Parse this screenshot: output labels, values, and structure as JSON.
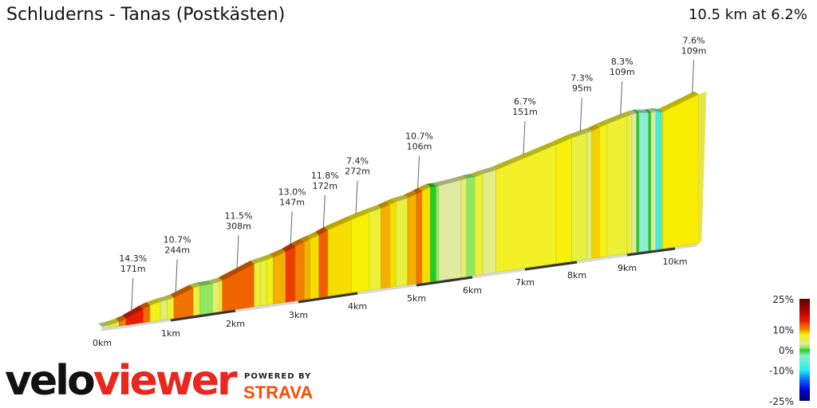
{
  "header": {
    "title": "Schluderns - Tanas (Postkästen)",
    "summary": "10.5 km at 6.2%"
  },
  "branding": {
    "logo_a": "velo",
    "logo_b": "viewer",
    "powered_by": "POWERED BY",
    "strava": "STRAVA"
  },
  "chart_data": {
    "type": "area",
    "title": "Schluderns - Tanas (Postkästen)",
    "distance_km": 10.5,
    "avg_gradient_pct": 6.2,
    "x_ticks": [
      "0km",
      "1km",
      "2km",
      "3km",
      "4km",
      "5km",
      "6km",
      "7km",
      "8km",
      "9km",
      "10km"
    ],
    "segments": [
      {
        "from": 0,
        "to": 0.1,
        "grad": 3
      },
      {
        "from": 0.1,
        "to": 0.25,
        "grad": 6
      },
      {
        "from": 0.25,
        "to": 0.35,
        "grad": 10
      },
      {
        "from": 0.35,
        "to": 0.6,
        "grad": 14.3
      },
      {
        "from": 0.6,
        "to": 0.7,
        "grad": 11
      },
      {
        "from": 0.7,
        "to": 0.85,
        "grad": 7
      },
      {
        "from": 0.85,
        "to": 0.95,
        "grad": 4
      },
      {
        "from": 0.95,
        "to": 1.05,
        "grad": 6
      },
      {
        "from": 1.05,
        "to": 1.35,
        "grad": 10.7
      },
      {
        "from": 1.35,
        "to": 1.45,
        "grad": 5
      },
      {
        "from": 1.45,
        "to": 1.65,
        "grad": 1
      },
      {
        "from": 1.65,
        "to": 1.75,
        "grad": 4
      },
      {
        "from": 1.75,
        "to": 1.8,
        "grad": 6
      },
      {
        "from": 1.8,
        "to": 2.3,
        "grad": 11.5
      },
      {
        "from": 2.3,
        "to": 2.4,
        "grad": 6
      },
      {
        "from": 2.4,
        "to": 2.5,
        "grad": 5
      },
      {
        "from": 2.5,
        "to": 2.6,
        "grad": 7
      },
      {
        "from": 2.6,
        "to": 2.8,
        "grad": 9
      },
      {
        "from": 2.8,
        "to": 2.95,
        "grad": 13
      },
      {
        "from": 2.95,
        "to": 3.1,
        "grad": 10
      },
      {
        "from": 3.1,
        "to": 3.2,
        "grad": 9
      },
      {
        "from": 3.2,
        "to": 3.35,
        "grad": 8
      },
      {
        "from": 3.35,
        "to": 3.5,
        "grad": 11.8
      },
      {
        "from": 3.5,
        "to": 3.9,
        "grad": 8
      },
      {
        "from": 3.9,
        "to": 4.2,
        "grad": 7.4
      },
      {
        "from": 4.2,
        "to": 4.4,
        "grad": 6
      },
      {
        "from": 4.4,
        "to": 4.55,
        "grad": 9
      },
      {
        "from": 4.55,
        "to": 4.65,
        "grad": 8
      },
      {
        "from": 4.65,
        "to": 4.85,
        "grad": 5
      },
      {
        "from": 4.85,
        "to": 5.0,
        "grad": 9
      },
      {
        "from": 5.0,
        "to": 5.1,
        "grad": 10.7
      },
      {
        "from": 5.1,
        "to": 5.25,
        "grad": 8
      },
      {
        "from": 5.25,
        "to": 5.35,
        "grad": 0
      },
      {
        "from": 5.35,
        "to": 5.4,
        "grad": 1
      },
      {
        "from": 5.4,
        "to": 5.8,
        "grad": 3
      },
      {
        "from": 5.8,
        "to": 5.9,
        "grad": 4
      },
      {
        "from": 5.9,
        "to": 6.05,
        "grad": 1
      },
      {
        "from": 6.05,
        "to": 6.2,
        "grad": 6
      },
      {
        "from": 6.2,
        "to": 6.45,
        "grad": 3.5
      },
      {
        "from": 6.45,
        "to": 7.6,
        "grad": 6.7
      },
      {
        "from": 7.6,
        "to": 7.9,
        "grad": 7.3
      },
      {
        "from": 7.9,
        "to": 8.2,
        "grad": 5
      },
      {
        "from": 8.2,
        "to": 8.3,
        "grad": 4
      },
      {
        "from": 8.3,
        "to": 8.45,
        "grad": 8.3
      },
      {
        "from": 8.45,
        "to": 8.6,
        "grad": 7
      },
      {
        "from": 8.6,
        "to": 9.0,
        "grad": 6
      },
      {
        "from": 9.0,
        "to": 9.1,
        "grad": 5
      },
      {
        "from": 9.1,
        "to": 9.2,
        "grad": 3
      },
      {
        "from": 9.2,
        "to": 9.25,
        "grad": 0
      },
      {
        "from": 9.25,
        "to": 9.45,
        "grad": -3
      },
      {
        "from": 9.45,
        "to": 9.5,
        "grad": 0
      },
      {
        "from": 9.5,
        "to": 9.6,
        "grad": 3
      },
      {
        "from": 9.6,
        "to": 9.7,
        "grad": -8
      },
      {
        "from": 9.7,
        "to": 9.75,
        "grad": 1
      },
      {
        "from": 9.75,
        "to": 10.5,
        "grad": 7.6
      }
    ],
    "annotations": [
      {
        "km": 0.45,
        "grad": "14.3%",
        "len": "171m"
      },
      {
        "km": 1.1,
        "grad": "10.7%",
        "len": "244m"
      },
      {
        "km": 2.05,
        "grad": "11.5%",
        "len": "308m"
      },
      {
        "km": 2.9,
        "grad": "13.0%",
        "len": "147m"
      },
      {
        "km": 3.45,
        "grad": "11.8%",
        "len": "172m"
      },
      {
        "km": 4.0,
        "grad": "7.4%",
        "len": "272m"
      },
      {
        "km": 5.05,
        "grad": "10.7%",
        "len": "106m"
      },
      {
        "km": 7.0,
        "grad": "6.7%",
        "len": "151m"
      },
      {
        "km": 8.1,
        "grad": "7.3%",
        "len": "95m"
      },
      {
        "km": 8.9,
        "grad": "8.3%",
        "len": "109m"
      },
      {
        "km": 10.4,
        "grad": "7.6%",
        "len": "109m"
      }
    ],
    "legend": {
      "labels": [
        "25%",
        "10%",
        "0%",
        "-10%",
        "-25%"
      ],
      "stops": [
        {
          "g": 25,
          "c": "#5a0000"
        },
        {
          "g": 18,
          "c": "#c00000"
        },
        {
          "g": 14,
          "c": "#e82000"
        },
        {
          "g": 12,
          "c": "#f05a00"
        },
        {
          "g": 10,
          "c": "#f08000"
        },
        {
          "g": 8.5,
          "c": "#f5c800"
        },
        {
          "g": 7.5,
          "c": "#f8f000"
        },
        {
          "g": 6.5,
          "c": "#f0f030"
        },
        {
          "g": 5,
          "c": "#e8f040"
        },
        {
          "g": 3,
          "c": "#e0eaa0"
        },
        {
          "g": 1,
          "c": "#90e860"
        },
        {
          "g": 0,
          "c": "#20d020"
        },
        {
          "g": -3,
          "c": "#90ecd0"
        },
        {
          "g": -10,
          "c": "#20f0f0"
        },
        {
          "g": -15,
          "c": "#0060ff"
        },
        {
          "g": -20,
          "c": "#0000d0"
        },
        {
          "g": -25,
          "c": "#000060"
        }
      ]
    }
  }
}
